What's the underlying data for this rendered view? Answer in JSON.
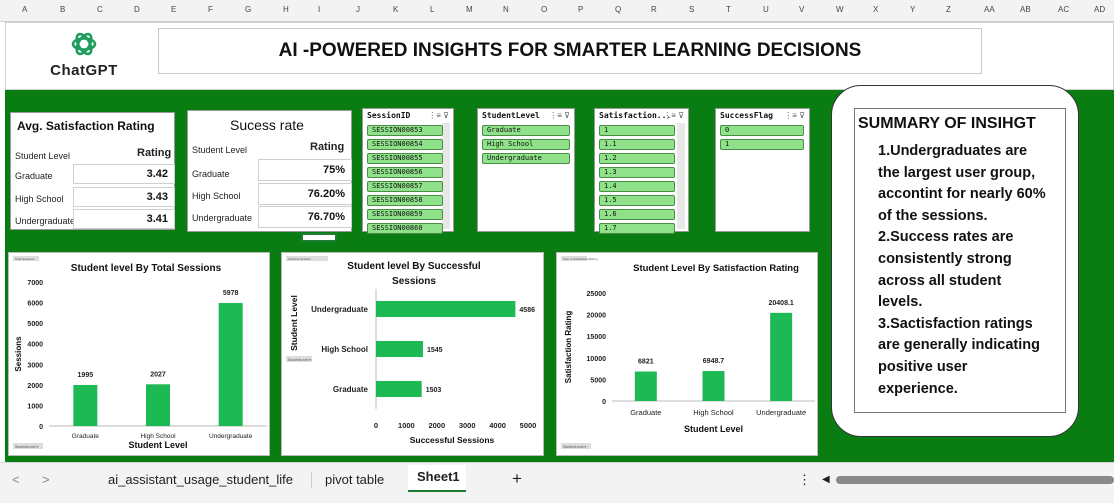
{
  "column_headers": [
    "A",
    "B",
    "C",
    "D",
    "E",
    "F",
    "G",
    "H",
    "I",
    "J",
    "K",
    "L",
    "M",
    "N",
    "O",
    "P",
    "Q",
    "R",
    "S",
    "T",
    "U",
    "V",
    "W",
    "X",
    "Y",
    "Z",
    "AA",
    "AB",
    "AC",
    "AD"
  ],
  "logo": {
    "text": "ChatGPT"
  },
  "title": "AI -POWERED INSIGHTS FOR SMARTER LEARNING DECISIONS",
  "avg_table": {
    "title": "Avg. Satisfaction Rating",
    "col1": "Student Level",
    "col2": "Rating",
    "rows": [
      {
        "label": "Graduate",
        "value": "3.42"
      },
      {
        "label": "High School",
        "value": "3.43"
      },
      {
        "label": "Undergraduate",
        "value": "3.41"
      }
    ]
  },
  "success_table": {
    "title": "Sucess rate",
    "col1": "Student Level",
    "col2": "Rating",
    "rows": [
      {
        "label": "Graduate",
        "value": "75%"
      },
      {
        "label": "High School",
        "value": "76.20%"
      },
      {
        "label": "Undergraduate",
        "value": "76.70%"
      }
    ]
  },
  "slicers": {
    "session": {
      "title": "SessionID",
      "items": [
        "SESSION00853",
        "SESSION00854",
        "SESSION00855",
        "SESSION00856",
        "SESSION00857",
        "SESSION00858",
        "SESSION00859",
        "SESSION00860"
      ]
    },
    "level": {
      "title": "StudentLevel",
      "items": [
        "Graduate",
        "High School",
        "Undergraduate"
      ]
    },
    "satisfaction": {
      "title": "Satisfaction...",
      "items": [
        "1",
        "1.1",
        "1.2",
        "1.3",
        "1.4",
        "1.5",
        "1.6",
        "1.7"
      ]
    },
    "success": {
      "title": "SuccessFlag",
      "items": [
        "0",
        "1"
      ]
    }
  },
  "charts": {
    "total": {
      "tag": "Total Sessions",
      "filter": "StudentLevel",
      "chart_data": {
        "type": "bar",
        "title": "Student level By Total Sessions",
        "xlabel": "Student Level",
        "ylabel": "Sessions",
        "categories": [
          "Graduate",
          "High School",
          "Undergraduate"
        ],
        "values": [
          1995,
          2027,
          5978
        ],
        "ylim": [
          0,
          7000
        ],
        "yticks": [
          0,
          1000,
          2000,
          3000,
          4000,
          5000,
          6000,
          7000
        ]
      }
    },
    "successful": {
      "tag": "Success Session",
      "filter": "StudentLevel",
      "chart_data": {
        "type": "bar",
        "orientation": "horizontal",
        "title": "Student level By Successful Sessions",
        "xlabel": "Successful Sessions",
        "ylabel": "Student Level",
        "categories": [
          "Undergraduate",
          "High School",
          "Graduate"
        ],
        "values": [
          4586,
          1545,
          1503
        ],
        "xlim": [
          0,
          5000
        ],
        "xticks": [
          0,
          1000,
          2000,
          3000,
          4000,
          5000
        ]
      }
    },
    "satisfaction": {
      "tag": "Sum of SatisfactionRating",
      "filter": "StudentLevel",
      "chart_data": {
        "type": "bar",
        "title": "Student Level By Satisfaction Rating",
        "xlabel": "Student Level",
        "ylabel": "Satisfaction Rating",
        "categories": [
          "Graduate",
          "High School",
          "Undergraduate"
        ],
        "values": [
          6821,
          6948.7,
          20408.1
        ],
        "value_labels": [
          "6821",
          "6948.7",
          "20408.1"
        ],
        "ylim": [
          0,
          25000
        ],
        "yticks": [
          0,
          5000,
          10000,
          15000,
          20000,
          25000
        ]
      }
    }
  },
  "summary": {
    "title": "SUMMARY OF INSIHGT",
    "lines": [
      "1.Undergraduates are",
      "the largest user group,",
      "accontint for nearly 60%",
      "of the sessions.",
      "2.Success rates are",
      "consistently strong",
      "across all student",
      "levels.",
      "3.Sactisfaction ratings",
      "are generally indicating",
      "positive user",
      "experience."
    ]
  },
  "tabs": [
    "ai_assistant_usage_student_life",
    "pivot table",
    "Sheet1"
  ],
  "accent": "#1db954",
  "sheet_bg": "#0a7d12"
}
